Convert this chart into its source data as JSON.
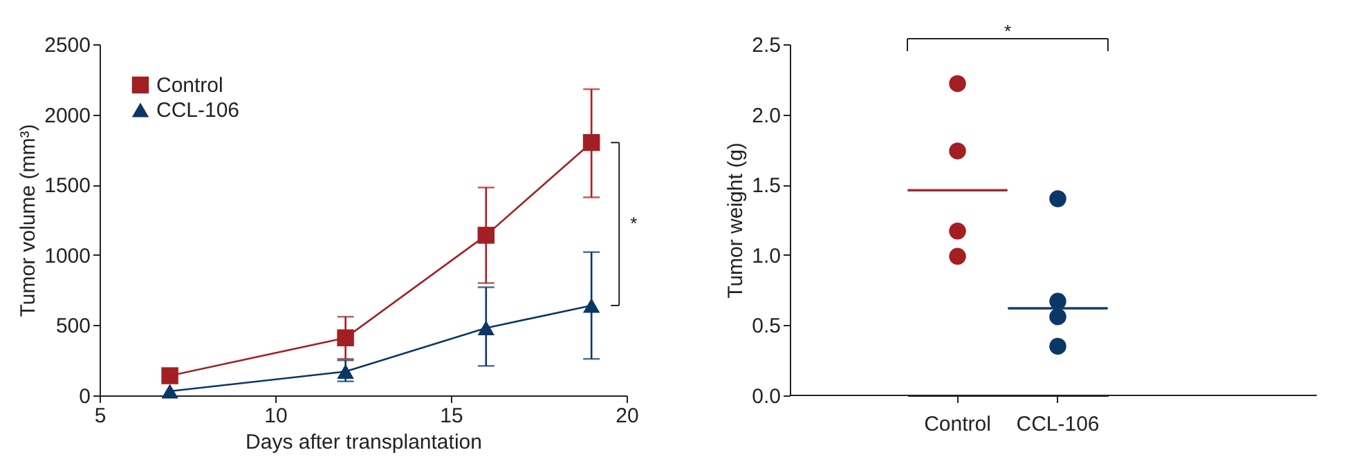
{
  "chart_data": [
    {
      "type": "line",
      "xlabel": "Days after transplantation",
      "ylabel": "Tumor volume (mm³)",
      "x": [
        7,
        12,
        16,
        19
      ],
      "xlim": [
        5,
        20
      ],
      "xticks": [
        5,
        10,
        15,
        20
      ],
      "ylim": [
        0,
        2500
      ],
      "yticks": [
        0,
        500,
        1000,
        1500,
        2000,
        2500
      ],
      "series": [
        {
          "name": "Control",
          "color": "#a31f24",
          "marker": "square",
          "values": [
            140,
            410,
            1140,
            1800
          ],
          "errors": [
            null,
            [
              260,
              560
            ],
            [
              800,
              1480
            ],
            [
              1410,
              2180
            ]
          ]
        },
        {
          "name": "CCL-106",
          "color": "#0b3766",
          "marker": "triangle",
          "values": [
            30,
            170,
            480,
            640
          ],
          "errors": [
            null,
            [
              100,
              250
            ],
            [
              210,
              770
            ],
            [
              260,
              1020
            ]
          ]
        }
      ],
      "legend": "top left",
      "grid": false,
      "annotations": [
        "*"
      ]
    },
    {
      "type": "scatter",
      "ylabel": "Tumor weight (g)",
      "categories": [
        "Control",
        "CCL-106"
      ],
      "ylim": [
        0,
        2.5
      ],
      "yticks": [
        {
          "value": 0,
          "label": "0.0"
        },
        {
          "value": 0.5,
          "label": "0.5"
        },
        {
          "value": 1,
          "label": "1.0"
        },
        {
          "value": 1.5,
          "label": "1.5"
        },
        {
          "value": 2,
          "label": "2.0"
        },
        {
          "value": 2.5,
          "label": "2.5"
        }
      ],
      "series": [
        {
          "type": "scatter",
          "color": "#a31f24",
          "x": [
            "Control",
            "Control",
            "Control",
            "Control"
          ],
          "values": [
            2.22,
            1.74,
            1.17,
            0.99
          ]
        },
        {
          "type": "scatter",
          "color": "#0b3766",
          "x": [
            "CCL-106",
            "CCL-106",
            "CCL-106",
            "CCL-106"
          ],
          "values": [
            1.4,
            0.67,
            0.56,
            0.35
          ]
        },
        {
          "type": "box",
          "color": "#a31f24",
          "x": [
            "Control"
          ],
          "boxes": [
            {
              "low": 1.46,
              "q1": 1.46,
              "median": 1.46,
              "q3": 1.46,
              "high": 1.46
            }
          ]
        },
        {
          "type": "box",
          "color": "#0b3766",
          "x": [
            "CCL-106"
          ],
          "boxes": [
            {
              "low": 0.62,
              "q1": 0.62,
              "median": 0.62,
              "q3": 0.62,
              "high": 0.62
            }
          ]
        }
      ],
      "marker": "circle",
      "legend": false,
      "grid": false,
      "annotations": [
        "*"
      ]
    }
  ]
}
